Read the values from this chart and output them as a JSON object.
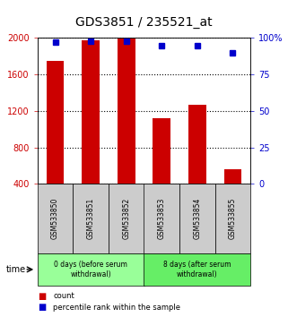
{
  "title": "GDS3851 / 235521_at",
  "samples": [
    "GSM533850",
    "GSM533851",
    "GSM533852",
    "GSM533853",
    "GSM533854",
    "GSM533855"
  ],
  "counts": [
    1750,
    1980,
    1990,
    1120,
    1270,
    560
  ],
  "percentiles": [
    97,
    98,
    98,
    95,
    95,
    90
  ],
  "ylim_left": [
    400,
    2000
  ],
  "ylim_right": [
    0,
    100
  ],
  "yticks_left": [
    400,
    800,
    1200,
    1600,
    2000
  ],
  "yticks_right": [
    0,
    25,
    50,
    75,
    100
  ],
  "bar_color": "#cc0000",
  "dot_color": "#0000cc",
  "left_tick_color": "#cc0000",
  "right_tick_color": "#0000cc",
  "grid_color": "#000000",
  "bg_plot": "#ffffff",
  "sample_box_color": "#cccccc",
  "group1_label": "0 days (before serum\nwithdrawal)",
  "group2_label": "8 days (after serum\nwithdrawal)",
  "group1_color": "#99ff99",
  "group2_color": "#66ee66",
  "time_label": "time",
  "legend_count_label": "count",
  "legend_pct_label": "percentile rank within the sample"
}
